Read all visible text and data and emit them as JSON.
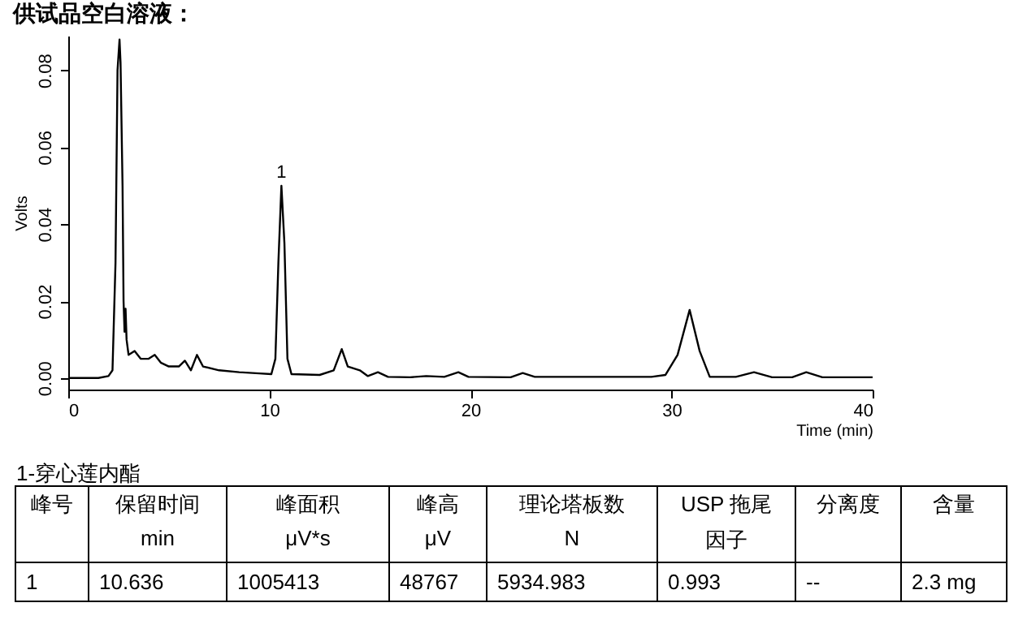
{
  "chart_data": {
    "type": "line",
    "title": "供试品空白溶液：",
    "xlabel": "Time (min)",
    "ylabel": "Volts",
    "x": [
      0,
      1.5,
      2.0,
      2.2,
      2.35,
      2.45,
      2.55,
      2.6,
      2.7,
      2.75,
      2.8,
      2.85,
      2.9,
      3.0,
      3.3,
      3.6,
      4.0,
      4.3,
      4.6,
      5.0,
      5.5,
      5.8,
      6.1,
      6.4,
      6.7,
      7.5,
      8.5,
      9.5,
      10.1,
      10.3,
      10.45,
      10.6,
      10.75,
      10.9,
      11.1,
      12.5,
      13.2,
      13.6,
      13.9,
      14.5,
      14.9,
      15.4,
      15.9,
      17,
      17.8,
      18.7,
      19.4,
      19.9,
      22,
      22.6,
      23.2,
      29,
      29.7,
      30.3,
      30.9,
      31.4,
      31.9,
      33.2,
      34.1,
      35,
      36,
      36.7,
      37.5,
      40
    ],
    "series": [
      {
        "color": "#000000",
        "values": [
          0,
          0,
          0.0005,
          0.002,
          0.03,
          0.08,
          0.088,
          0.082,
          0.05,
          0.02,
          0.012,
          0.018,
          0.01,
          0.006,
          0.007,
          0.005,
          0.005,
          0.006,
          0.004,
          0.003,
          0.003,
          0.0045,
          0.002,
          0.006,
          0.003,
          0.002,
          0.0015,
          0.0012,
          0.001,
          0.005,
          0.03,
          0.05,
          0.035,
          0.005,
          0.001,
          0.0008,
          0.002,
          0.0075,
          0.003,
          0.002,
          0.0005,
          0.0015,
          0.0003,
          0.0002,
          0.0005,
          0.0003,
          0.0015,
          0.0003,
          0.0002,
          0.0013,
          0.0003,
          0.0003,
          0.0008,
          0.006,
          0.0177,
          0.007,
          0.0003,
          0.0003,
          0.0015,
          0.0002,
          0.0002,
          0.0015,
          0.0002,
          0.0002
        ]
      }
    ],
    "xlim": [
      0,
      40
    ],
    "xticks": [
      0,
      10,
      20,
      30,
      40
    ],
    "ylim": [
      -0.003,
      0.089
    ],
    "yticks": [
      {
        "value": 0,
        "label": "0.00"
      },
      {
        "value": 0.02,
        "label": "0.02"
      },
      {
        "value": 0.04,
        "label": "0.04"
      },
      {
        "value": 0.06,
        "label": "0.06"
      },
      {
        "value": 0.08,
        "label": "0.08"
      }
    ],
    "grid": false,
    "annotations": [
      {
        "text": "1",
        "x": 10.6,
        "y": 0.05
      },
      "1-穿心莲内酯",
      "峰号",
      "保留时间",
      "峰面积",
      "峰高",
      "理论塔板数",
      "USP 拖尾",
      "分离度",
      "含量",
      null,
      "min",
      "μV*s",
      "μV",
      "N",
      "因子",
      null,
      null,
      "1",
      "10.636",
      "1005413",
      "48767",
      "5934.983",
      "0.993",
      "--",
      "2.3 mg"
    ]
  }
}
